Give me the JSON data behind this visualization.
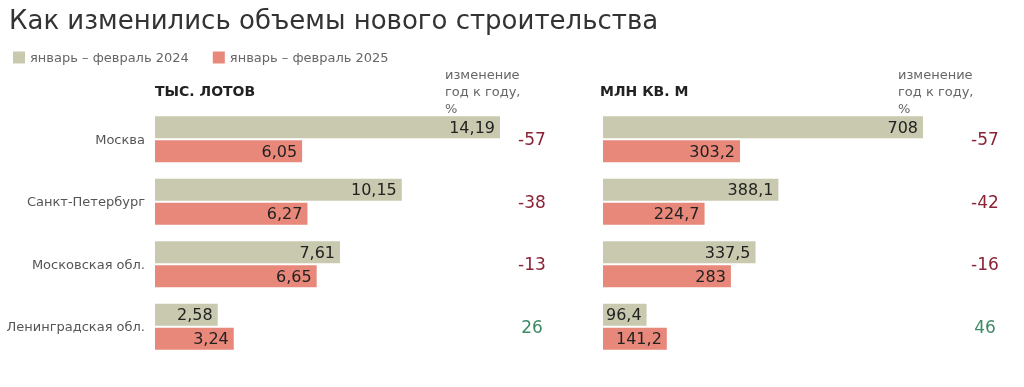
{
  "chart_data": [
    {
      "type": "bar",
      "orientation": "horizontal",
      "title": "Как изменились объемы нового строительства",
      "subtitle": "ТЫС. ЛОТОВ",
      "legend": "top left",
      "categories": [
        "Москва",
        "Санкт-Петербург",
        "Московская обл.",
        "Ленинградская обл."
      ],
      "series": [
        {
          "name": "январь – февраль 2024",
          "color": "#c9c9b0",
          "values": [
            14.19,
            10.15,
            7.61,
            2.58
          ],
          "value_labels": [
            "14,19",
            "10,15",
            "7,61",
            "2,58"
          ]
        },
        {
          "name": "январь – февраль 2025",
          "color": "#e8887a",
          "values": [
            6.05,
            6.27,
            6.65,
            3.24
          ],
          "value_labels": [
            "6,05",
            "6,27",
            "6,65",
            "3,24"
          ]
        }
      ],
      "annotations": [
        "изменение год к году, %",
        "-57",
        "-38",
        "-13",
        "26"
      ]
    },
    {
      "type": "bar",
      "orientation": "horizontal",
      "subtitle": "МЛН КВ. М",
      "categories": [
        null,
        null,
        null,
        null
      ],
      "series": [
        {
          "color": "#c9c9b0",
          "values": [
            708,
            388.1,
            337.5,
            96.4
          ],
          "value_labels": [
            "708",
            "388,1",
            "337,5",
            "96,4"
          ]
        },
        {
          "color": "#e8887a",
          "values": [
            303.2,
            224.7,
            283,
            141.2
          ],
          "value_labels": [
            "303,2",
            "224,7",
            "283",
            "141,2"
          ]
        }
      ],
      "annotations": [
        "изменение год к году, %",
        "-57",
        "-42",
        "-16",
        "46"
      ]
    }
  ]
}
